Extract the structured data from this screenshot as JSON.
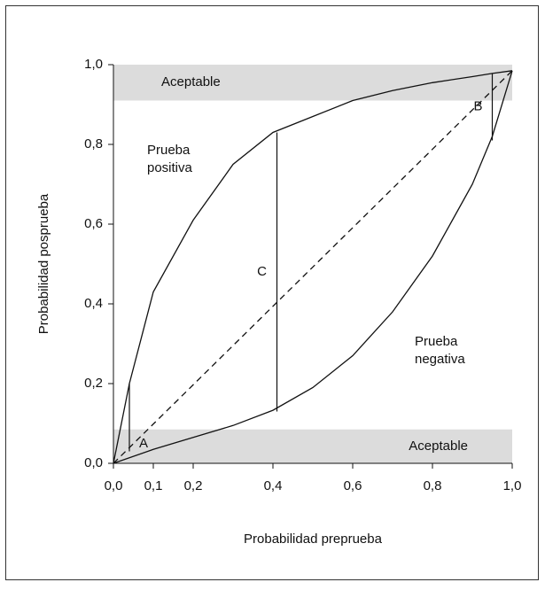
{
  "chart_data": {
    "type": "line",
    "xlabel": "Probabilidad preprueba",
    "ylabel": "Probabilidad posprueba",
    "xlim": [
      0,
      1
    ],
    "ylim": [
      0,
      1
    ],
    "xticks": [
      {
        "value": 0,
        "label": "0,0"
      },
      {
        "value": 0.1,
        "label": "0,1"
      },
      {
        "value": 0.2,
        "label": "0,2"
      },
      {
        "value": 0.4,
        "label": "0,4"
      },
      {
        "value": 0.6,
        "label": "0,6"
      },
      {
        "value": 0.8,
        "label": "0,8"
      },
      {
        "value": 1,
        "label": "1,0"
      }
    ],
    "yticks": [
      {
        "value": 0,
        "label": "0,0"
      },
      {
        "value": 0.2,
        "label": "0,2"
      },
      {
        "value": 0.4,
        "label": "0,4"
      },
      {
        "value": 0.6,
        "label": "0,6"
      },
      {
        "value": 0.8,
        "label": "0,8"
      },
      {
        "value": 1,
        "label": "1,0"
      }
    ],
    "series": [
      {
        "color": "#111111",
        "x": [
          0,
          0.04,
          0.1,
          0.2,
          0.3,
          0.4,
          0.5,
          0.6,
          0.7,
          0.8,
          0.9,
          0.95,
          1
        ],
        "values": [
          0,
          0.2,
          0.43,
          0.61,
          0.75,
          0.83,
          0.87,
          0.91,
          0.935,
          0.955,
          0.97,
          0.978,
          0.985
        ]
      },
      {
        "color": "#111111",
        "x": [
          0,
          0.1,
          0.2,
          0.3,
          0.4,
          0.5,
          0.6,
          0.7,
          0.8,
          0.9,
          0.95,
          1
        ],
        "values": [
          0,
          0.035,
          0.065,
          0.095,
          0.133,
          0.19,
          0.27,
          0.38,
          0.52,
          0.7,
          0.82,
          0.985
        ]
      },
      {
        "color": "#111111",
        "dashed": true,
        "x": [
          0,
          1
        ],
        "values": [
          0,
          0.985
        ]
      }
    ],
    "bands": [
      {
        "label": "Aceptable",
        "range": [
          0.91,
          1
        ],
        "color": "#dcdcdc"
      },
      {
        "label": "Aceptable",
        "range": [
          0,
          0.085
        ],
        "color": "#dcdcdc"
      }
    ],
    "segments": [
      {
        "label": "A",
        "x": 0.04,
        "y0": 0.03,
        "y1": 0.2
      },
      {
        "label": "C",
        "x": 0.41,
        "y0": 0.13,
        "y1": 0.83
      },
      {
        "label": "B",
        "x": 0.95,
        "y0": 0.81,
        "y1": 0.978
      }
    ],
    "annotations": [
      {
        "lines": [
          "Prueba",
          "positiva"
        ]
      },
      {
        "lines": [
          "Prueba",
          "negativa"
        ]
      }
    ]
  }
}
